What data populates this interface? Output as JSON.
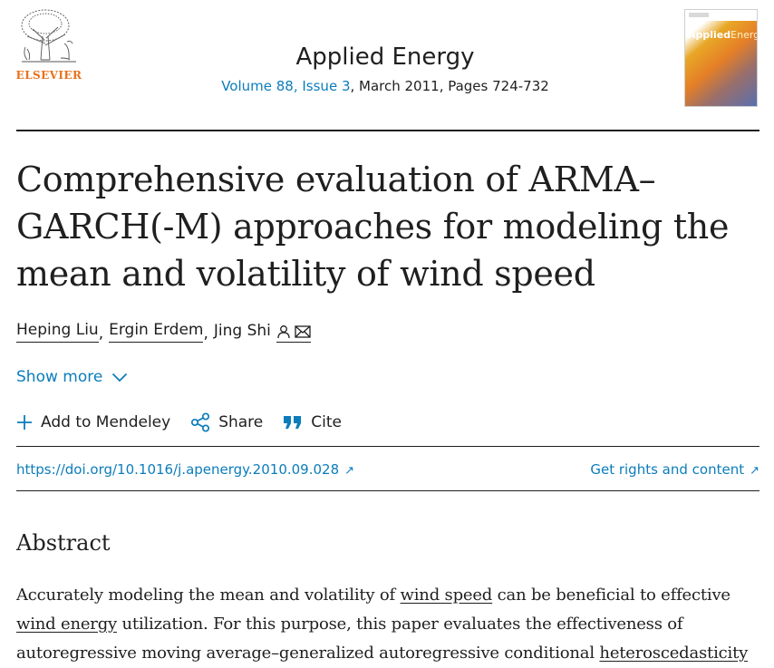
{
  "publisher": {
    "name": "ELSEVIER",
    "logo_icon": "elsevier-tree-icon"
  },
  "journal": {
    "title": "Applied Energy",
    "issue_link": "Volume 88, Issue 3",
    "issue_rest": ", March 2011, Pages 724-732",
    "cover": {
      "title_part1": "Applied",
      "title_part2": "Energy"
    }
  },
  "article": {
    "title": "Comprehensive evaluation of ARMA–GARCH(-M) approaches for modeling the mean and volatility of wind speed",
    "authors": [
      {
        "name": "Heping Liu"
      },
      {
        "name": "Ergin Erdem"
      },
      {
        "name": "Jing Shi"
      }
    ],
    "author_separator": ",",
    "show_more": "Show more"
  },
  "actions": {
    "mendeley": "Add to Mendeley",
    "share": "Share",
    "cite": "Cite"
  },
  "links": {
    "doi": "https://doi.org/10.1016/j.apenergy.2010.09.028",
    "rights": "Get rights and content"
  },
  "abstract": {
    "heading": "Abstract",
    "line1_a": "Accurately modeling the mean and volatility of ",
    "line1_term": "wind speed",
    "line1_b": " can be beneficial to effective",
    "line2_term": "wind energy",
    "line2_b": " utilization. For this purpose, this paper evaluates the effectiveness of",
    "line3_a": "autoregressive moving average–generalized autoregressive conditional ",
    "line3_term": "heteroscedasticity"
  },
  "colors": {
    "link": "#0c7dbb",
    "brand_orange": "#e9711c",
    "text": "#1f1f1f"
  }
}
